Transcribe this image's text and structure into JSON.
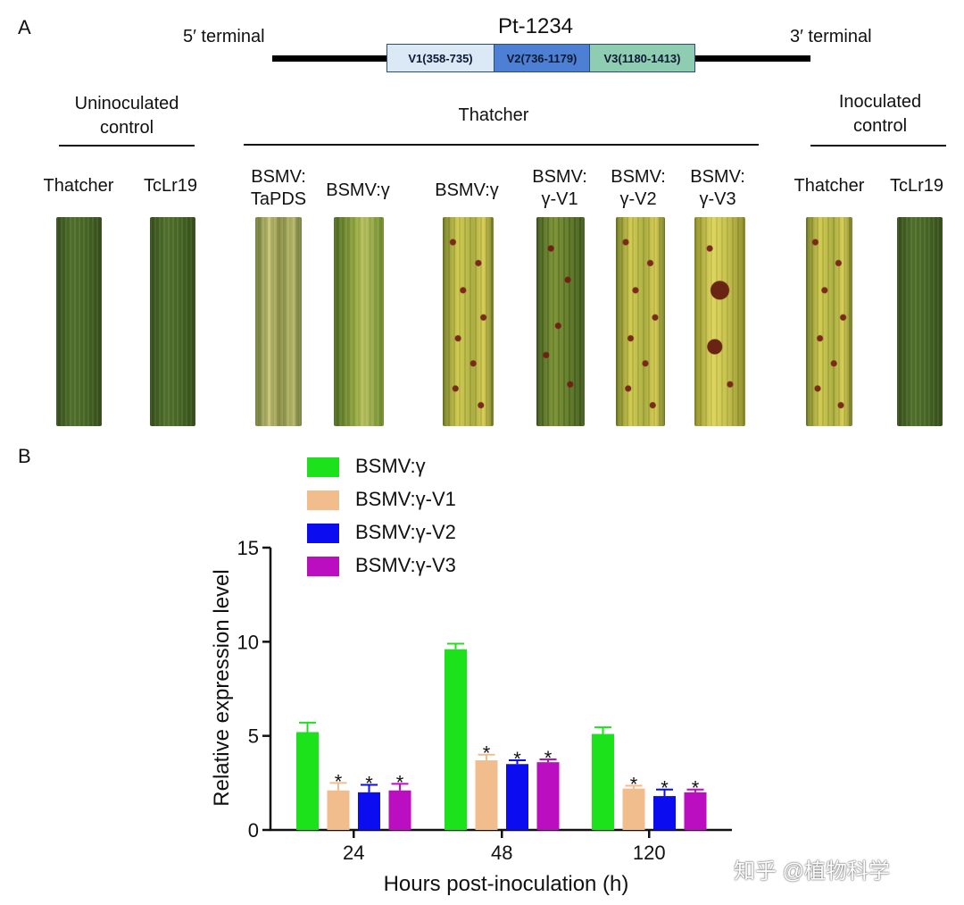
{
  "panel_a": {
    "label": "A",
    "gene": {
      "name": "Pt-1234",
      "left_end": "5′ terminal",
      "right_end": "3′ terminal",
      "segments": [
        {
          "label": "V1(358-735)",
          "color": "#dbe8f6"
        },
        {
          "label": "V2(736-1179)",
          "color": "#4d7fd4"
        },
        {
          "label": "V3(1180-1413)",
          "color": "#8fcdb2"
        }
      ]
    },
    "groups": {
      "uninoculated": "Uninoculated control",
      "thatcher": "Thatcher",
      "inoculated": "Inoculated control"
    },
    "leaves": [
      {
        "label": "Thatcher"
      },
      {
        "label": "TcLr19"
      },
      {
        "label": "BSMV: TaPDS"
      },
      {
        "label": "BSMV:γ"
      },
      {
        "label": "BSMV:γ"
      },
      {
        "label": "BSMV: γ-V1"
      },
      {
        "label": "BSMV: γ-V2"
      },
      {
        "label": "BSMV: γ-V3"
      },
      {
        "label": "Thatcher"
      },
      {
        "label": "TcLr19"
      }
    ]
  },
  "panel_b": {
    "label": "B"
  },
  "chart_data": {
    "type": "bar",
    "categories": [
      "24",
      "48",
      "120"
    ],
    "series": [
      {
        "name": "BSMV:γ",
        "color": "#1be21b",
        "values": [
          5.2,
          9.6,
          5.1
        ],
        "errors": [
          0.5,
          0.3,
          0.35
        ],
        "sig": [
          "",
          "",
          ""
        ]
      },
      {
        "name": "BSMV:γ-V1",
        "color": "#f2bd8c",
        "values": [
          2.1,
          3.7,
          2.2
        ],
        "errors": [
          0.4,
          0.3,
          0.15
        ],
        "sig": [
          "*",
          "*",
          "*"
        ]
      },
      {
        "name": "BSMV:γ-V2",
        "color": "#0c0cf0",
        "values": [
          2.0,
          3.5,
          1.8
        ],
        "errors": [
          0.4,
          0.2,
          0.35
        ],
        "sig": [
          "*",
          "*",
          "*"
        ]
      },
      {
        "name": "BSMV:γ-V3",
        "color": "#bb0ec0",
        "values": [
          2.1,
          3.6,
          2.0
        ],
        "errors": [
          0.35,
          0.15,
          0.15
        ],
        "sig": [
          "*",
          "*",
          "*"
        ]
      }
    ],
    "xlabel": "Hours post-inoculation (h)",
    "ylabel": "Relative expression level",
    "ylim": [
      0,
      15
    ],
    "yticks": [
      0,
      5,
      10,
      15
    ],
    "legend": "top-left"
  },
  "watermark": "知乎 @植物科学"
}
